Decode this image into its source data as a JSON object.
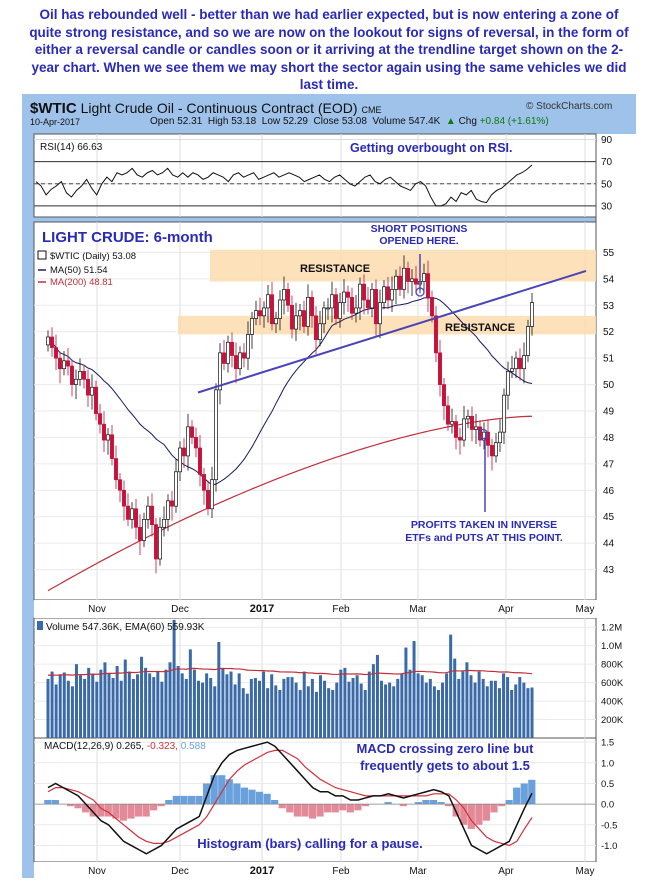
{
  "intro_text": "Oil has rebounded well - better than we had earlier expected, but is now entering a zone of quite strong resistance, and so we are now on the lookout for signs of reversal, in the form of either a reversal candle or candles soon or it arriving at the trendline target shown on the 2-year chart. When we see them we may short the sector again using the same vehicles we did last time.",
  "header": {
    "symbol": "$WTIC",
    "name": "Light Crude Oil - Continuous Contract (EOD)",
    "exchange": "CME",
    "date": "10-Apr-2017",
    "open_label": "Open",
    "open": "52.31",
    "high_label": "High",
    "high": "53.18",
    "low_label": "Low",
    "low": "52.29",
    "close_label": "Close",
    "close": "53.08",
    "volume_label": "Volume",
    "volume": "547.4K",
    "chg_label": "Chg",
    "chg": "+0.84 (+1.61%)",
    "chg_arrow": "▲",
    "credit": "© StockCharts.com"
  },
  "colors": {
    "frame": "#9fc2ea",
    "annotation": "#2a2ab8",
    "up_candle": "#111111",
    "down_candle": "#c8103a",
    "ma50": "#1a1a60",
    "ma200": "#c0303c",
    "resistance_zone": "#fbdcae",
    "trendline": "#4a44b8",
    "volume_bar": "#3a6aa8",
    "macd_line": "#111111",
    "signal_line": "#d0303c",
    "hist_pos": "#6aa0dc",
    "hist_neg": "#e38a98"
  },
  "chart_data": [
    {
      "type": "line",
      "title": "RSI(14) 66.63",
      "ylim": [
        20,
        95
      ],
      "yticks": [
        "90",
        "70",
        "50",
        "30"
      ],
      "reference_lines": [
        70,
        50,
        30
      ],
      "annotation": "Getting overbought on RSI.",
      "series": [
        {
          "name": "RSI(14)",
          "values": [
            52,
            48,
            40,
            45,
            48,
            52,
            42,
            38,
            44,
            48,
            54,
            46,
            40,
            50,
            56,
            52,
            60,
            58,
            60,
            64,
            58,
            56,
            60,
            62,
            58,
            60,
            64,
            58,
            56,
            60,
            56,
            60,
            58,
            54,
            56,
            60,
            58,
            56,
            52,
            58,
            60,
            56,
            58,
            60,
            54,
            56,
            58,
            60,
            56,
            58,
            60,
            58,
            56,
            52,
            54,
            56,
            58,
            54,
            52,
            56,
            58,
            54,
            50,
            48,
            52,
            56,
            58,
            52,
            50,
            54,
            56,
            52,
            48,
            46,
            44,
            50,
            52,
            48,
            38,
            30,
            30,
            32,
            38,
            34,
            42,
            40,
            44,
            36,
            34,
            33,
            40,
            44,
            46,
            50,
            54,
            58,
            60,
            63,
            67
          ]
        }
      ]
    },
    {
      "type": "candlestick",
      "title": "$WTIC (Daily) 53.08",
      "panel_label": "LIGHT CRUDE: 6-month",
      "ylim": [
        42,
        56
      ],
      "yticks": [
        "55",
        "54",
        "53",
        "52",
        "51",
        "50",
        "49",
        "48",
        "47",
        "46",
        "45",
        "44",
        "43"
      ],
      "x_labels": [
        "Nov",
        "Dec",
        "2017",
        "Feb",
        "Mar",
        "Apr",
        "May"
      ],
      "legend": [
        {
          "name": "$WTIC (Daily) 53.08"
        },
        {
          "name": "MA(50) 51.54"
        },
        {
          "name": "MA(200) 48.81"
        }
      ],
      "close": [
        51.8,
        51.4,
        51.0,
        50.6,
        50.9,
        50.7,
        50.0,
        50.2,
        50.5,
        50.2,
        49.6,
        49.9,
        48.9,
        48.5,
        47.9,
        48.1,
        47.2,
        46.4,
        46.0,
        45.4,
        44.9,
        45.3,
        44.6,
        44.1,
        44.9,
        45.4,
        44.7,
        43.4,
        44.6,
        44.9,
        45.6,
        45.4,
        46.7,
        47.6,
        47.3,
        48.4,
        48.0,
        47.6,
        46.6,
        46.0,
        45.3,
        46.4,
        49.8,
        51.2,
        50.8,
        51.6,
        51.1,
        50.6,
        51.2,
        51.0,
        51.9,
        52.5,
        52.8,
        52.6,
        52.9,
        53.4,
        52.3,
        52.5,
        53.2,
        53.6,
        53.0,
        52.1,
        52.6,
        52.8,
        52.2,
        53.3,
        52.6,
        51.7,
        52.3,
        52.9,
        52.9,
        53.4,
        52.5,
        53.1,
        53.5,
        53.3,
        52.7,
        52.9,
        53.8,
        53.2,
        52.9,
        53.6,
        52.3,
        53.1,
        53.7,
        53.2,
        53.6,
        54.1,
        53.6,
        54.4,
        53.9,
        54.0,
        53.8,
        53.9,
        54.2,
        53.3,
        52.6,
        51.2,
        50.0,
        49.2,
        48.5,
        48.6,
        48.0,
        47.9,
        48.7,
        48.8,
        48.3,
        48.4,
        47.9,
        48.2,
        47.7,
        47.3,
        47.8,
        48.2,
        49.6,
        50.5,
        50.6,
        51.0,
        50.6,
        51.1,
        52.2,
        53.1
      ],
      "annotations": [
        "RESISTANCE",
        "RESISTANCE",
        "SHORT POSITIONS",
        "OPENED HERE.",
        "PROFITS TAKEN IN INVERSE",
        "ETFs and PUTS AT THIS POINT."
      ],
      "resistance_zones": [
        [
          53.9,
          55.1
        ],
        [
          51.9,
          52.6
        ]
      ],
      "trendline": [
        [
          49.7,
          0.18
        ],
        [
          54.3,
          1.0
        ]
      ]
    },
    {
      "type": "bar",
      "title": "Volume 547.36K, EMA(60) 559.93K",
      "ylim": [
        0,
        1300000
      ],
      "yticks": [
        "1.2M",
        "1.0M",
        "800K",
        "600K",
        "400K",
        "200K"
      ],
      "values": [
        640,
        720,
        580,
        690,
        710,
        620,
        560,
        800,
        680,
        640,
        760,
        690,
        610,
        740,
        820,
        700,
        650,
        780,
        620,
        850,
        720,
        640,
        690,
        880,
        760,
        700,
        660,
        720,
        610,
        740,
        820,
        1280,
        780,
        700,
        640,
        960,
        740,
        620,
        600,
        700,
        650,
        560,
        1040,
        760,
        690,
        720,
        580,
        700,
        540,
        480,
        640,
        650,
        620,
        720,
        540,
        690,
        570,
        520,
        640,
        660,
        660,
        600,
        520,
        720,
        560,
        640,
        500,
        680,
        620,
        540,
        520,
        600,
        740,
        760,
        610,
        650,
        680,
        590,
        520,
        720,
        800,
        900,
        620,
        580,
        600,
        560,
        640,
        700,
        980,
        740,
        1050,
        700,
        680,
        600,
        640,
        560,
        520,
        600,
        700,
        1120,
        860,
        640,
        720,
        820,
        680,
        600,
        720,
        640,
        560,
        620,
        620,
        540,
        700,
        660,
        520,
        580,
        660,
        600,
        540,
        547
      ]
    },
    {
      "type": "line",
      "title": "MACD(12,26,9) 0.265, -0.323, 0.588",
      "ylim": [
        -1.4,
        1.6
      ],
      "yticks": [
        "1.5",
        "1.0",
        "0.5",
        "0.0",
        "-0.5",
        "-1.0"
      ],
      "annotations": [
        "MACD crossing zero line but",
        "frequently gets to about 1.5",
        "Histogram (bars) calling for a pause."
      ],
      "series": [
        {
          "name": "MACD(12,26,9) 0.265",
          "values": [
            0.4,
            0.5,
            0.4,
            0.3,
            0.2,
            0.0,
            -0.2,
            -0.4,
            -0.5,
            -0.7,
            -0.9,
            -1.0,
            -1.1,
            -1.2,
            -1.1,
            -1.0,
            -0.8,
            -0.6,
            -0.5,
            -0.4,
            -0.3,
            0.2,
            0.7,
            1.0,
            1.2,
            1.3,
            1.35,
            1.4,
            1.45,
            1.5,
            1.4,
            1.2,
            1.0,
            0.8,
            0.6,
            0.4,
            0.3,
            0.3,
            0.2,
            0.2,
            0.1,
            0.1,
            0.15,
            0.2,
            0.2,
            0.25,
            0.2,
            0.15,
            0.2,
            0.25,
            0.3,
            0.35,
            0.3,
            0.2,
            -0.2,
            -0.6,
            -1.0,
            -1.1,
            -1.2,
            -1.1,
            -1.0,
            -0.9,
            -0.5,
            -0.1,
            0.265
          ]
        },
        {
          "name": "-0.323",
          "values": [
            0.3,
            0.4,
            0.4,
            0.35,
            0.3,
            0.2,
            0.1,
            -0.1,
            -0.2,
            -0.35,
            -0.5,
            -0.65,
            -0.8,
            -0.9,
            -0.95,
            -0.95,
            -0.9,
            -0.8,
            -0.7,
            -0.6,
            -0.5,
            -0.3,
            0.0,
            0.3,
            0.6,
            0.8,
            0.95,
            1.05,
            1.15,
            1.25,
            1.3,
            1.3,
            1.2,
            1.1,
            0.9,
            0.75,
            0.6,
            0.5,
            0.4,
            0.35,
            0.3,
            0.25,
            0.2,
            0.2,
            0.2,
            0.2,
            0.2,
            0.2,
            0.2,
            0.2,
            0.2,
            0.25,
            0.25,
            0.25,
            0.1,
            -0.1,
            -0.4,
            -0.6,
            -0.8,
            -0.9,
            -0.95,
            -1.0,
            -0.9,
            -0.6,
            -0.323
          ]
        },
        {
          "name": "0.588"
        }
      ]
    }
  ]
}
